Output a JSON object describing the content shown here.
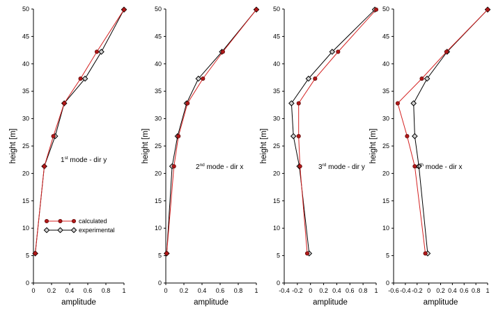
{
  "colors": {
    "calculated": "#d42020",
    "experimental": "#000000",
    "calc_fill": "#b01818",
    "exp_fill": "#d0d0d0"
  },
  "legend": {
    "calculated": "calculated",
    "experimental": "experimental"
  },
  "chart_data": [
    {
      "type": "line",
      "annotation": {
        "num": "1",
        "sup": "st",
        "rest": " mode - dir y"
      },
      "xlabel": "amplitude",
      "ylabel": "height [m]",
      "xlim": [
        0,
        1
      ],
      "ylim": [
        0,
        50
      ],
      "xticks": [
        "0",
        "0.2",
        "0.4",
        "0.6",
        "0.8",
        "1"
      ],
      "yticks": [
        "0",
        "5",
        "10",
        "15",
        "20",
        "25",
        "30",
        "35",
        "40",
        "45",
        "50"
      ],
      "legend": true,
      "series": [
        {
          "name": "calculated",
          "points": [
            [
              0.02,
              5.4
            ],
            [
              0.12,
              21.3
            ],
            [
              0.22,
              26.8
            ],
            [
              0.34,
              32.8
            ],
            [
              0.52,
              37.3
            ],
            [
              0.7,
              42.2
            ],
            [
              1.0,
              49.9
            ]
          ]
        },
        {
          "name": "experimental",
          "points": [
            [
              0.02,
              5.4
            ],
            [
              0.12,
              21.3
            ],
            [
              0.24,
              26.8
            ],
            [
              0.34,
              32.8
            ],
            [
              0.57,
              37.3
            ],
            [
              0.75,
              42.2
            ],
            [
              1.0,
              49.9
            ]
          ]
        }
      ]
    },
    {
      "type": "line",
      "annotation": {
        "num": "2",
        "sup": "nd",
        "rest": " mode - dir x"
      },
      "xlabel": "amplitude",
      "ylabel": "height [m]",
      "xlim": [
        0,
        1
      ],
      "ylim": [
        0,
        50
      ],
      "xticks": [
        "0",
        "0.2",
        "0.4",
        "0.6",
        "0.8",
        "1"
      ],
      "yticks": [
        "0",
        "5",
        "10",
        "15",
        "20",
        "25",
        "30",
        "35",
        "40",
        "45",
        "50"
      ],
      "legend": false,
      "series": [
        {
          "name": "calculated",
          "points": [
            [
              0.01,
              5.4
            ],
            [
              0.09,
              21.3
            ],
            [
              0.14,
              26.8
            ],
            [
              0.24,
              32.8
            ],
            [
              0.41,
              37.3
            ],
            [
              0.63,
              42.2
            ],
            [
              1.0,
              49.9
            ]
          ]
        },
        {
          "name": "experimental",
          "points": [
            [
              0.01,
              5.4
            ],
            [
              0.07,
              21.3
            ],
            [
              0.13,
              26.8
            ],
            [
              0.23,
              32.8
            ],
            [
              0.36,
              37.3
            ],
            [
              0.62,
              42.2
            ],
            [
              1.0,
              49.9
            ]
          ]
        }
      ]
    },
    {
      "type": "line",
      "annotation": {
        "num": "3",
        "sup": "rd",
        "rest": " mode - dir y"
      },
      "xlabel": "amplitude",
      "ylabel": "height [m]",
      "xlim": [
        -0.4,
        1
      ],
      "ylim": [
        0,
        50
      ],
      "xticks": [
        "-0.4",
        "-0.2",
        "0",
        "0.2",
        "0.4",
        "0.6",
        "0.8",
        "1"
      ],
      "yticks": [
        "0",
        "5",
        "10",
        "15",
        "20",
        "25",
        "30",
        "35",
        "40",
        "45",
        "50"
      ],
      "legend": false,
      "series": [
        {
          "name": "calculated",
          "points": [
            [
              -0.05,
              5.4
            ],
            [
              -0.16,
              21.3
            ],
            [
              -0.18,
              26.8
            ],
            [
              -0.18,
              32.8
            ],
            [
              0.07,
              37.3
            ],
            [
              0.42,
              42.2
            ],
            [
              1.0,
              49.9
            ]
          ]
        },
        {
          "name": "experimental",
          "points": [
            [
              -0.02,
              5.4
            ],
            [
              -0.17,
              21.3
            ],
            [
              -0.26,
              26.8
            ],
            [
              -0.29,
              32.8
            ],
            [
              -0.03,
              37.3
            ],
            [
              0.33,
              42.2
            ],
            [
              0.98,
              49.9
            ]
          ]
        }
      ]
    },
    {
      "type": "line",
      "annotation": {
        "num": "4",
        "sup": "th",
        "rest": " mode - dir x"
      },
      "xlabel": "amplitude",
      "ylabel": "height [m]",
      "xlim": [
        -0.6,
        1
      ],
      "ylim": [
        0,
        50
      ],
      "xticks": [
        "-0.6",
        "-0.4",
        "-0.2",
        "0",
        "0.2",
        "0.4",
        "0.6",
        "0.8",
        "1"
      ],
      "yticks": [
        "0",
        "5",
        "10",
        "15",
        "20",
        "25",
        "30",
        "35",
        "40",
        "45",
        "50"
      ],
      "legend": false,
      "series": [
        {
          "name": "calculated",
          "points": [
            [
              -0.06,
              5.4
            ],
            [
              -0.24,
              21.3
            ],
            [
              -0.37,
              26.8
            ],
            [
              -0.53,
              32.8
            ],
            [
              -0.12,
              37.3
            ],
            [
              0.3,
              42.2
            ],
            [
              1.0,
              49.9
            ]
          ]
        },
        {
          "name": "experimental",
          "points": [
            [
              -0.02,
              5.4
            ],
            [
              -0.17,
              21.3
            ],
            [
              -0.24,
              26.8
            ],
            [
              -0.26,
              32.8
            ],
            [
              -0.03,
              37.3
            ],
            [
              0.31,
              42.2
            ],
            [
              1.0,
              49.9
            ]
          ]
        }
      ]
    }
  ]
}
